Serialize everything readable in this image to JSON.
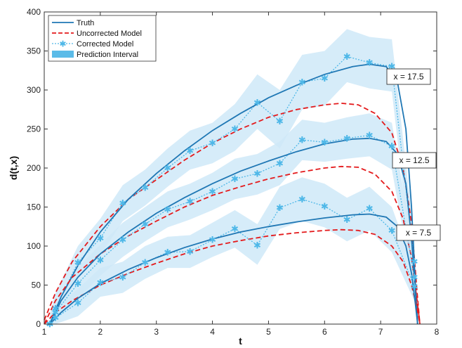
{
  "chart_data": {
    "type": "line",
    "title": "",
    "xlabel": "t",
    "ylabel": "d(t,x)",
    "xlim": [
      1,
      8
    ],
    "ylim": [
      0,
      400
    ],
    "xticks": [
      1,
      2,
      3,
      4,
      5,
      6,
      7,
      8
    ],
    "yticks": [
      0,
      50,
      100,
      150,
      200,
      250,
      300,
      350,
      400
    ],
    "grid": false,
    "legend_position": "top-left",
    "legend": [
      "Truth",
      "Uncorrected Model",
      "Corrected Model",
      "Prediction Interval"
    ],
    "colors": {
      "truth": "#1f77b4",
      "uncorrected": "#e41a1c",
      "corrected": "#4fb8e8",
      "interval": "#cfe9f8"
    },
    "annotations": [
      "x = 17.5",
      "x = 12.5",
      "x = 7.5"
    ],
    "groups": [
      {
        "label": "x = 17.5",
        "truth": {
          "x": [
            1.1,
            1.3,
            1.6,
            2.0,
            2.5,
            3.0,
            3.5,
            4.0,
            4.5,
            5.0,
            5.5,
            6.0,
            6.5,
            6.8,
            7.1,
            7.3,
            7.45,
            7.55,
            7.62,
            7.66
          ],
          "y": [
            0,
            35,
            75,
            118,
            160,
            193,
            222,
            248,
            270,
            290,
            306,
            320,
            330,
            333,
            330,
            310,
            250,
            150,
            50,
            0
          ]
        },
        "uncorrected": {
          "x": [
            1.0,
            1.2,
            1.5,
            2.0,
            2.5,
            3.0,
            3.5,
            4.0,
            4.5,
            5.0,
            5.5,
            6.0,
            6.3,
            6.6,
            6.9,
            7.2,
            7.4,
            7.55,
            7.65,
            7.7
          ],
          "y": [
            5,
            40,
            80,
            125,
            160,
            185,
            210,
            232,
            250,
            265,
            275,
            281,
            283,
            281,
            270,
            245,
            200,
            130,
            40,
            0
          ]
        },
        "corrected": {
          "x": [
            1.1,
            1.2,
            1.6,
            2.0,
            2.4,
            2.8,
            3.2,
            3.6,
            4.0,
            4.4,
            4.8,
            5.2,
            5.6,
            6.0,
            6.4,
            6.8,
            7.2,
            7.6
          ],
          "y": [
            0,
            20,
            79,
            110,
            155,
            175,
            200,
            222,
            232,
            250,
            284,
            260,
            310,
            315,
            343,
            335,
            330,
            80
          ]
        },
        "interval_upper": [
          12,
          40,
          100,
          135,
          178,
          198,
          225,
          248,
          258,
          282,
          320,
          300,
          345,
          350,
          378,
          368,
          365,
          110
        ],
        "interval_lower": [
          0,
          5,
          60,
          88,
          132,
          152,
          176,
          198,
          206,
          222,
          250,
          225,
          275,
          280,
          310,
          302,
          298,
          50
        ]
      },
      {
        "label": "x = 12.5",
        "truth": {
          "x": [
            1.1,
            1.3,
            1.6,
            2.0,
            2.5,
            3.0,
            3.5,
            4.0,
            4.5,
            5.0,
            5.5,
            6.0,
            6.5,
            6.8,
            7.1,
            7.3,
            7.45,
            7.55,
            7.62,
            7.66
          ],
          "y": [
            0,
            30,
            60,
            90,
            118,
            142,
            162,
            180,
            196,
            209,
            221,
            231,
            237,
            238,
            234,
            218,
            180,
            110,
            40,
            0
          ]
        },
        "uncorrected": {
          "x": [
            1.0,
            1.2,
            1.5,
            2.0,
            2.5,
            3.0,
            3.5,
            4.0,
            4.5,
            5.0,
            5.5,
            6.0,
            6.3,
            6.6,
            6.9,
            7.2,
            7.4,
            7.55,
            7.65,
            7.7
          ],
          "y": [
            0,
            30,
            60,
            90,
            113,
            132,
            150,
            165,
            176,
            186,
            194,
            200,
            202,
            201,
            192,
            170,
            135,
            85,
            30,
            0
          ]
        },
        "corrected": {
          "x": [
            1.1,
            1.2,
            1.6,
            2.0,
            2.4,
            2.8,
            3.2,
            3.6,
            4.0,
            4.4,
            4.8,
            5.2,
            5.6,
            6.0,
            6.4,
            6.8,
            7.2,
            7.6
          ],
          "y": [
            0,
            15,
            52,
            82,
            108,
            128,
            147,
            157,
            170,
            186,
            193,
            206,
            236,
            233,
            238,
            242,
            228,
            60
          ]
        },
        "interval_upper": [
          8,
          28,
          72,
          102,
          130,
          150,
          170,
          180,
          194,
          212,
          218,
          234,
          262,
          258,
          265,
          270,
          258,
          90
        ],
        "interval_lower": [
          0,
          4,
          32,
          62,
          86,
          106,
          124,
          134,
          146,
          160,
          166,
          178,
          210,
          208,
          212,
          215,
          198,
          40
        ]
      },
      {
        "label": "x = 7.5",
        "truth": {
          "x": [
            1.1,
            1.3,
            1.6,
            2.0,
            2.5,
            3.0,
            3.5,
            4.0,
            4.5,
            5.0,
            5.5,
            6.0,
            6.5,
            6.8,
            7.1,
            7.3,
            7.45,
            7.55,
            7.62,
            7.66
          ],
          "y": [
            0,
            15,
            33,
            52,
            70,
            85,
            98,
            109,
            118,
            125,
            131,
            136,
            140,
            141,
            137,
            125,
            100,
            65,
            25,
            0
          ]
        },
        "uncorrected": {
          "x": [
            1.0,
            1.2,
            1.5,
            2.0,
            2.5,
            3.0,
            3.5,
            4.0,
            4.5,
            5.0,
            5.5,
            6.0,
            6.3,
            6.6,
            6.9,
            7.2,
            7.4,
            7.55,
            7.65,
            7.7
          ],
          "y": [
            0,
            15,
            30,
            50,
            65,
            78,
            90,
            100,
            107,
            113,
            117,
            120,
            121,
            120,
            115,
            100,
            80,
            50,
            20,
            0
          ]
        },
        "corrected": {
          "x": [
            1.1,
            1.2,
            1.6,
            2.0,
            2.4,
            2.8,
            3.2,
            3.6,
            4.0,
            4.4,
            4.8,
            5.2,
            5.6,
            6.0,
            6.4,
            6.8,
            7.2,
            7.6
          ],
          "y": [
            0,
            8,
            27,
            53,
            60,
            79,
            92,
            93,
            108,
            122,
            101,
            149,
            160,
            151,
            134,
            148,
            120,
            48
          ]
        },
        "interval_upper": [
          5,
          20,
          45,
          72,
          80,
          100,
          112,
          114,
          130,
          146,
          128,
          176,
          188,
          180,
          162,
          176,
          150,
          70
        ],
        "interval_lower": [
          0,
          0,
          10,
          35,
          40,
          58,
          72,
          72,
          86,
          98,
          76,
          122,
          132,
          124,
          106,
          120,
          92,
          30
        ]
      }
    ]
  }
}
